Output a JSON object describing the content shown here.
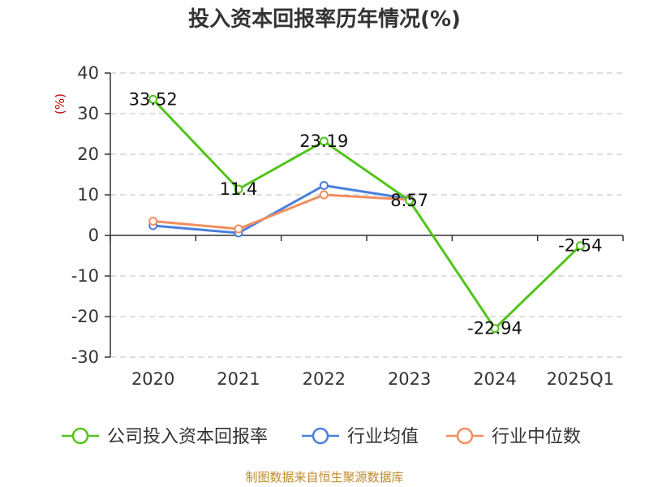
{
  "chart_data": {
    "type": "line",
    "title": "投入资本回报率历年情况(%)",
    "ylabel": "(%)",
    "xlabel": "",
    "categories": [
      "2020",
      "2021",
      "2022",
      "2023",
      "2024",
      "2025Q1"
    ],
    "ylim": [
      -30,
      40
    ],
    "yticks": [
      40,
      30,
      20,
      10,
      0,
      -10,
      -20,
      -30
    ],
    "grid": true,
    "legend_position": "bottom",
    "series": [
      {
        "name": "公司投入资本回报率",
        "color": "#52c41a",
        "values": [
          33.52,
          11.4,
          23.19,
          8.57,
          -22.94,
          -2.54
        ],
        "labels": [
          "33.52",
          "11.4",
          "23.19",
          "8.57",
          "-22.94",
          "-2.54"
        ]
      },
      {
        "name": "行业均值",
        "color": "#4a7fdc",
        "values": [
          2.4,
          0.6,
          12.3,
          9.0,
          null,
          null
        ]
      },
      {
        "name": "行业中位数",
        "color": "#f28e5e",
        "values": [
          3.5,
          1.6,
          10.0,
          8.8,
          null,
          null
        ]
      }
    ]
  },
  "source": "制图数据来自恒生聚源数据库"
}
